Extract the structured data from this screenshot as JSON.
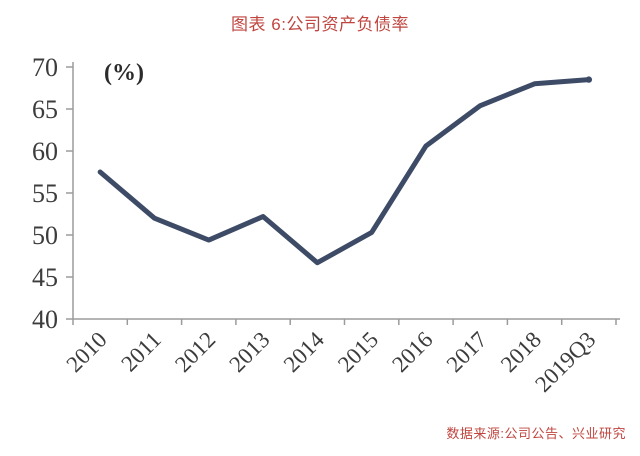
{
  "figure": {
    "title": "图表 6:公司资产负债率",
    "source": "数据来源:公司公告、兴业研究"
  },
  "colors": {
    "accent_red": "#c0453f",
    "line": "#3d4b66",
    "axis": "#9b9b9b",
    "tick_label": "#3c3c3c"
  },
  "chart_data": {
    "type": "line",
    "title": "图表 6:公司资产负债率",
    "unit_label": "(%)",
    "categories": [
      "2010",
      "2011",
      "2012",
      "2013",
      "2014",
      "2015",
      "2016",
      "2017",
      "2018",
      "2019Q3"
    ],
    "values": [
      57.5,
      52.0,
      49.4,
      52.2,
      46.7,
      50.3,
      60.6,
      65.4,
      68.0,
      68.5
    ],
    "ylim": [
      40,
      70
    ],
    "y_ticks": [
      40,
      45,
      50,
      55,
      60,
      65,
      70
    ],
    "grid": false,
    "legend": false,
    "source": "数据来源:公司公告、兴业研究"
  }
}
